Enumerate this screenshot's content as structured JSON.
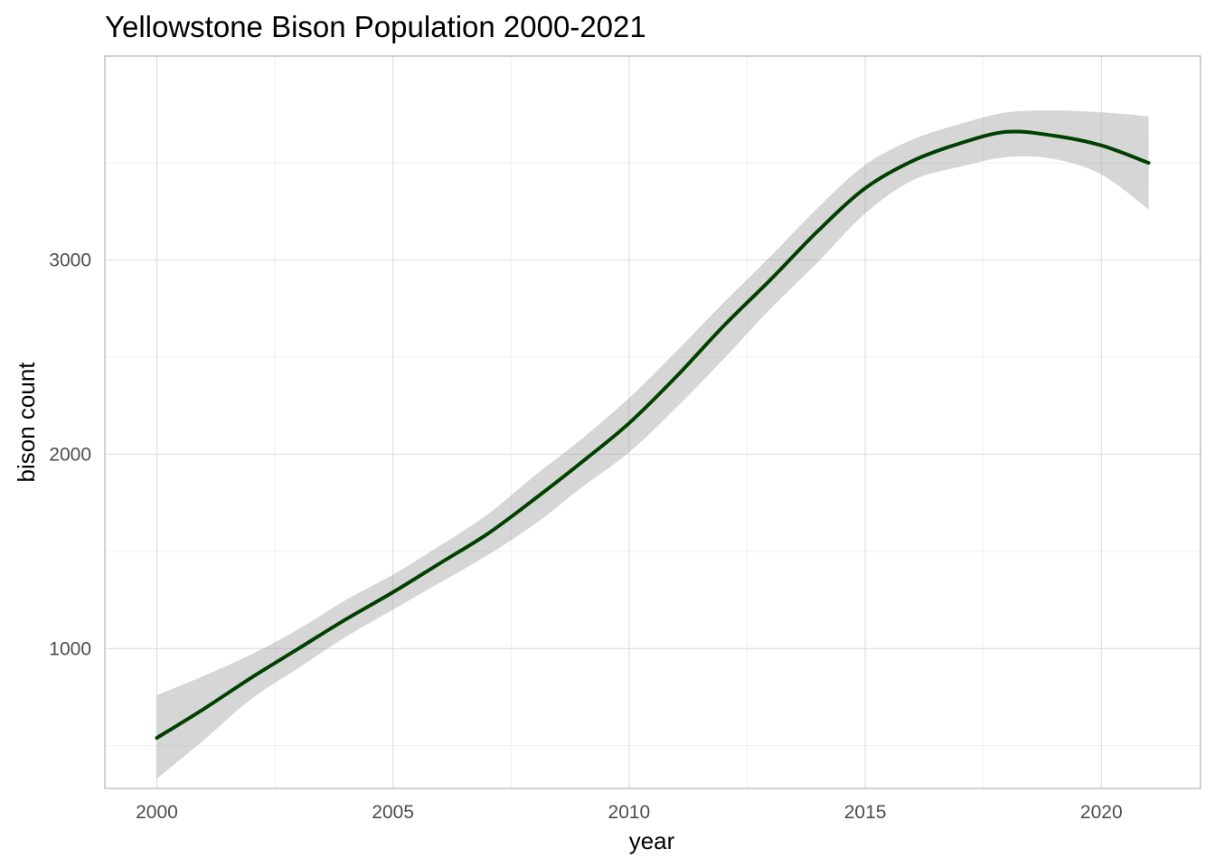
{
  "chart_data": {
    "type": "line",
    "title": "Yellowstone Bison Population 2000-2021",
    "xlabel": "year",
    "ylabel": "bison count",
    "xlim": [
      1998.9,
      2022.1
    ],
    "ylim": [
      280,
      4050
    ],
    "x_ticks": [
      2000,
      2005,
      2010,
      2015,
      2020
    ],
    "x_tick_labels": [
      "2000",
      "2005",
      "2010",
      "2015",
      "2020"
    ],
    "x_minor_ticks": [
      2002.5,
      2007.5,
      2012.5,
      2017.5
    ],
    "y_ticks": [
      1000,
      2000,
      3000
    ],
    "y_tick_labels": [
      "1000",
      "2000",
      "3000"
    ],
    "y_minor_ticks": [
      500,
      1500,
      2500,
      3500
    ],
    "grid": true,
    "legend": "none",
    "colors": {
      "line": "#004000",
      "band": "#999999"
    },
    "series": [
      {
        "x": [
          2000,
          2001,
          2002,
          2003,
          2004,
          2005,
          2006,
          2007,
          2008,
          2009,
          2010,
          2011,
          2012,
          2013,
          2014,
          2015,
          2016,
          2017,
          2018,
          2019,
          2020,
          2021
        ],
        "y": [
          540,
          690,
          850,
          1000,
          1150,
          1290,
          1440,
          1590,
          1770,
          1960,
          2160,
          2400,
          2660,
          2900,
          3150,
          3370,
          3510,
          3600,
          3660,
          3640,
          3590,
          3500
        ],
        "ymin": [
          330,
          530,
          740,
          900,
          1060,
          1200,
          1340,
          1480,
          1640,
          1830,
          2010,
          2240,
          2490,
          2750,
          2990,
          3240,
          3410,
          3480,
          3530,
          3520,
          3440,
          3260
        ],
        "ymax": [
          760,
          860,
          970,
          1100,
          1250,
          1380,
          1530,
          1690,
          1890,
          2080,
          2290,
          2530,
          2780,
          3020,
          3270,
          3490,
          3620,
          3700,
          3760,
          3770,
          3760,
          3740
        ]
      }
    ]
  }
}
